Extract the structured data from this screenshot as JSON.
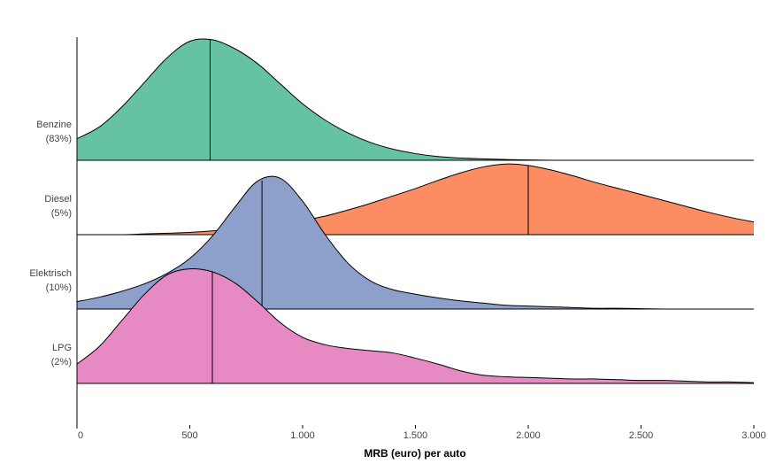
{
  "chart_data": {
    "type": "ridgeline",
    "x_label": "MRB (euro) per auto",
    "xlim": [
      0,
      3000
    ],
    "xticks": [
      0,
      500,
      {
        "value": 1000,
        "label": "1.000"
      },
      {
        "value": 1500,
        "label": "1.500"
      },
      {
        "value": 2000,
        "label": "2.000"
      },
      {
        "value": 2500,
        "label": "2.500"
      },
      {
        "value": 3000,
        "label": "3.000"
      }
    ],
    "x": [
      0,
      100,
      200,
      300,
      400,
      500,
      600,
      700,
      800,
      900,
      1000,
      1100,
      1200,
      1300,
      1400,
      1500,
      1600,
      1700,
      1800,
      1900,
      2000,
      2100,
      2200,
      2300,
      2400,
      2500,
      2600,
      2700,
      2800,
      2900,
      3000
    ],
    "series": [
      {
        "name": "Benzine",
        "share_label": "(83%)",
        "color": "#66c2a5",
        "median": 590,
        "values": [
          0.29,
          0.45,
          0.72,
          1.05,
          1.38,
          1.6,
          1.62,
          1.5,
          1.3,
          1.03,
          0.76,
          0.54,
          0.37,
          0.24,
          0.15,
          0.09,
          0.05,
          0.03,
          0.02,
          0.01,
          0.005,
          0,
          0,
          0,
          0,
          0,
          0,
          0,
          0,
          0,
          0
        ]
      },
      {
        "name": "Diesel",
        "share_label": "(5%)",
        "color": "#fc8d62",
        "median": 2000,
        "values": [
          0,
          0,
          0,
          0.01,
          0.02,
          0.03,
          0.05,
          0.07,
          0.1,
          0.14,
          0.19,
          0.25,
          0.33,
          0.42,
          0.52,
          0.62,
          0.73,
          0.83,
          0.91,
          0.95,
          0.93,
          0.87,
          0.79,
          0.7,
          0.62,
          0.54,
          0.46,
          0.38,
          0.3,
          0.23,
          0.17
        ]
      },
      {
        "name": "Elektrisch",
        "share_label": "(10%)",
        "color": "#8da0cb",
        "median": 820,
        "values": [
          0.1,
          0.16,
          0.24,
          0.34,
          0.48,
          0.68,
          0.98,
          1.37,
          1.72,
          1.76,
          1.45,
          1.0,
          0.62,
          0.38,
          0.26,
          0.2,
          0.15,
          0.11,
          0.08,
          0.05,
          0.04,
          0.03,
          0.02,
          0.01,
          0.01,
          0.005,
          0,
          0,
          0,
          0,
          0
        ]
      },
      {
        "name": "LPG",
        "share_label": "(2%)",
        "color": "#e78ac3",
        "median": 600,
        "values": [
          0.26,
          0.5,
          0.85,
          1.2,
          1.46,
          1.54,
          1.5,
          1.35,
          1.1,
          0.82,
          0.62,
          0.52,
          0.47,
          0.44,
          0.41,
          0.34,
          0.26,
          0.17,
          0.11,
          0.09,
          0.08,
          0.07,
          0.06,
          0.06,
          0.05,
          0.04,
          0.04,
          0.03,
          0.02,
          0.02,
          0.01
        ]
      }
    ]
  }
}
